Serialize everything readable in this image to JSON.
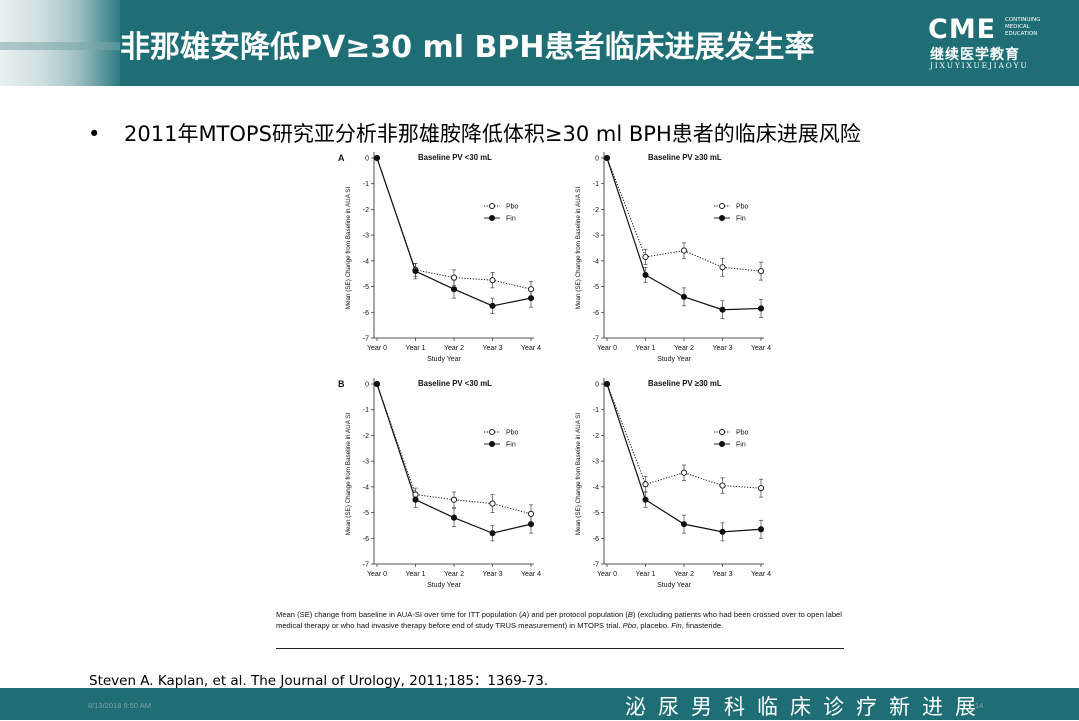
{
  "slide": {
    "title": "非那雄安降低PV≥30 ml BPH患者临床进展发生率",
    "bullet": "2011年MTOPS研究亚分析非那雄胺降低体积≥30 ml BPH患者的临床进展风险",
    "bullet_marker": "•",
    "caption_parts": [
      "Mean (SE) change from baseline in AUA-SI over time for ITT population (",
      "A",
      ") and per protocol population (",
      "B",
      ") (excluding patients who had been crossed over to open label medical therapy or who had invasive therapy before end of study TRUS measurement) in MTOPS trial. ",
      "Pbo",
      ", placebo. ",
      "Fin",
      ", finasteride."
    ],
    "reference": "Steven  A. Kaplan, et al. The Journal of Urology, 2011;185：1369-73.",
    "footer_date": "8/13/2018 9:50 AM",
    "footer_page": "14",
    "footer_slogan": "泌尿男科临床诊疗新进展",
    "logo": {
      "big": "CME",
      "small": [
        "CONTINUING",
        "MEDICAL",
        "EDUCATION"
      ],
      "chinese": "继续医学教育",
      "pinyin": "JIXUYIXUEJIAOYU"
    },
    "colors": {
      "header": "#1f6e76",
      "footer": "#1f6e76",
      "title_text": "#ffffff"
    }
  },
  "chart_data": [
    {
      "type": "line",
      "panel_label": "A",
      "title": "Baseline PV <30 mL",
      "xlabel": "Study Year",
      "ylabel": "Mean (SE) Change from Baseline in AUA SI",
      "categories": [
        "Year 0",
        "Year 1",
        "Year 2",
        "Year 3",
        "Year 4"
      ],
      "yticks": [
        0,
        -1,
        -2,
        -3,
        -4,
        -5,
        -6,
        -7
      ],
      "ylim": [
        -7,
        0
      ],
      "legend_position": "upper-right",
      "series": [
        {
          "name": "Pbo",
          "marker": "open",
          "style": "dotted",
          "values": [
            0,
            -4.35,
            -4.65,
            -4.75,
            -5.1
          ],
          "se": [
            0,
            0.25,
            0.3,
            0.3,
            0.3
          ]
        },
        {
          "name": "Fin",
          "marker": "filled",
          "style": "solid",
          "values": [
            0,
            -4.4,
            -5.1,
            -5.75,
            -5.45
          ],
          "se": [
            0,
            0.3,
            0.35,
            0.3,
            0.35
          ]
        }
      ]
    },
    {
      "type": "line",
      "panel_label": "",
      "title": "Baseline PV ≥30 mL",
      "xlabel": "Study Year",
      "ylabel": "Mean (SE) Change from Baseline in AUA SI",
      "categories": [
        "Year 0",
        "Year 1",
        "Year 2",
        "Year 3",
        "Year 4"
      ],
      "yticks": [
        0,
        -1,
        -2,
        -3,
        -4,
        -5,
        -6,
        -7
      ],
      "ylim": [
        -7,
        0
      ],
      "legend_position": "upper-right",
      "series": [
        {
          "name": "Pbo",
          "marker": "open",
          "style": "dotted",
          "values": [
            0,
            -3.85,
            -3.6,
            -4.25,
            -4.4
          ],
          "se": [
            0,
            0.3,
            0.3,
            0.35,
            0.35
          ]
        },
        {
          "name": "Fin",
          "marker": "filled",
          "style": "solid",
          "values": [
            0,
            -4.55,
            -5.4,
            -5.9,
            -5.85
          ],
          "se": [
            0,
            0.3,
            0.35,
            0.35,
            0.35
          ]
        }
      ]
    },
    {
      "type": "line",
      "panel_label": "B",
      "title": "Baseline PV <30 mL",
      "xlabel": "Study Year",
      "ylabel": "Mean (SE) Change from Baseline in AUA SI",
      "categories": [
        "Year 0",
        "Year 1",
        "Year 2",
        "Year 3",
        "Year 4"
      ],
      "yticks": [
        0,
        -1,
        -2,
        -3,
        -4,
        -5,
        -6,
        -7
      ],
      "ylim": [
        -7,
        0
      ],
      "legend_position": "upper-right",
      "series": [
        {
          "name": "Pbo",
          "marker": "open",
          "style": "dotted",
          "values": [
            0,
            -4.3,
            -4.5,
            -4.65,
            -5.05
          ],
          "se": [
            0,
            0.25,
            0.3,
            0.35,
            0.35
          ]
        },
        {
          "name": "Fin",
          "marker": "filled",
          "style": "solid",
          "values": [
            0,
            -4.5,
            -5.2,
            -5.8,
            -5.45
          ],
          "se": [
            0,
            0.3,
            0.35,
            0.3,
            0.35
          ]
        }
      ]
    },
    {
      "type": "line",
      "panel_label": "",
      "title": "Baseline PV ≥30 mL",
      "xlabel": "Study Year",
      "ylabel": "Mean (SE) Change from Baseline in AUA SI",
      "categories": [
        "Year 0",
        "Year 1",
        "Year 2",
        "Year 3",
        "Year 4"
      ],
      "yticks": [
        0,
        -1,
        -2,
        -3,
        -4,
        -5,
        -6,
        -7
      ],
      "ylim": [
        -7,
        0
      ],
      "legend_position": "upper-right",
      "series": [
        {
          "name": "Pbo",
          "marker": "open",
          "style": "dotted",
          "values": [
            0,
            -3.9,
            -3.45,
            -3.95,
            -4.05
          ],
          "se": [
            0,
            0.3,
            0.3,
            0.3,
            0.35
          ]
        },
        {
          "name": "Fin",
          "marker": "filled",
          "style": "solid",
          "values": [
            0,
            -4.5,
            -5.45,
            -5.75,
            -5.65
          ],
          "se": [
            0,
            0.3,
            0.35,
            0.35,
            0.35
          ]
        }
      ]
    }
  ]
}
